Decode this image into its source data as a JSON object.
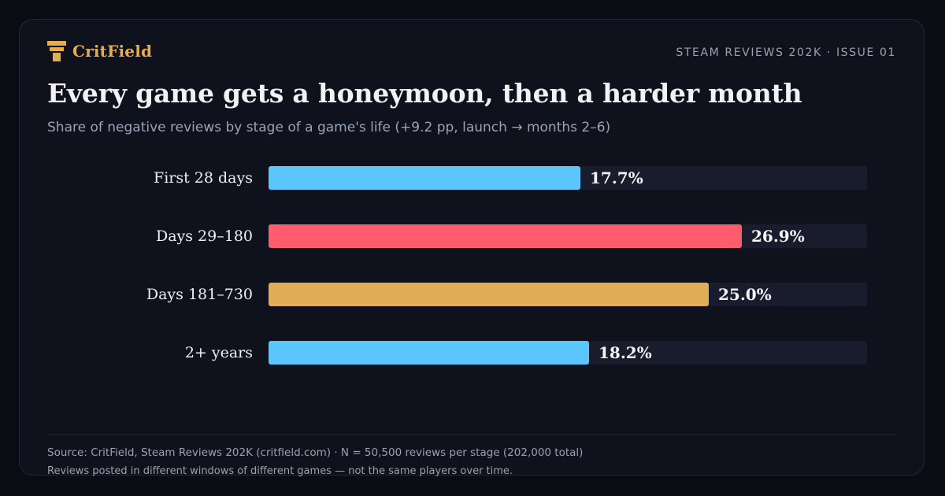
{
  "brand": {
    "name": "CritField",
    "icon": "critfield-logo-icon",
    "color": "#e3ad52"
  },
  "header": {
    "issue": "STEAM REVIEWS 202K · ISSUE 01"
  },
  "chart_data": {
    "type": "bar",
    "orientation": "horizontal",
    "title": "Every game gets a honeymoon, then a harder month",
    "subtitle": "Share of negative reviews by stage of a game's life (+9.2 pp, launch → months 2–6)",
    "categories": [
      "First 28 days",
      "Days 29–180",
      "Days 181–730",
      "2+ years"
    ],
    "values": [
      17.7,
      26.9,
      25.0,
      18.2
    ],
    "value_labels": [
      "17.7%",
      "26.9%",
      "25.0%",
      "18.2%"
    ],
    "bar_colors": [
      "#5bc6fb",
      "#ff5c6e",
      "#e2ae55",
      "#5bc6fb"
    ],
    "track_color": "#181c2c",
    "unit": "%",
    "xlim": [
      0,
      34
    ],
    "grid": false,
    "legend": "none"
  },
  "footer": {
    "source": "Source: CritField, Steam Reviews 202K (critfield.com) · N = 50,500 reviews per stage (202,000 total)",
    "note": "Reviews posted in different windows of different games — not the same players over time."
  }
}
